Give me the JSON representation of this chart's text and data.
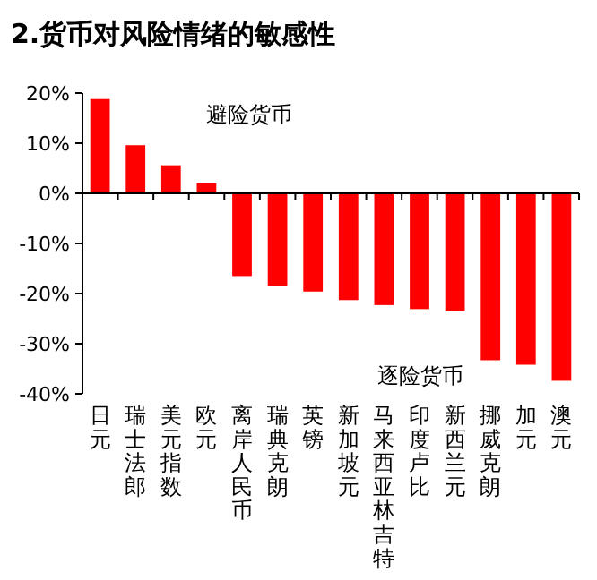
{
  "chart_data": {
    "type": "bar",
    "title": "2.货币对风险情绪的敏感性",
    "categories": [
      "日元",
      "瑞士法郎",
      "美元指数",
      "欧元",
      "离岸人民币",
      "瑞典克朗",
      "英镑",
      "新加坡元",
      "马来西亚林吉特",
      "印度卢比",
      "新西兰元",
      "挪威克朗",
      "加元",
      "澳元"
    ],
    "values": [
      18.8,
      9.6,
      5.6,
      2.0,
      -16.5,
      -18.5,
      -19.6,
      -21.3,
      -22.3,
      -23.1,
      -23.5,
      -33.3,
      -34.2,
      -37.4
    ],
    "color": "#ff0000",
    "ylim": [
      -40,
      20
    ],
    "yticks": [
      {
        "value": -40,
        "label": "-40%"
      },
      {
        "value": -30,
        "label": "-30%"
      },
      {
        "value": -20,
        "label": "-20%"
      },
      {
        "value": -10,
        "label": "-10%"
      },
      {
        "value": 0,
        "label": "0%"
      },
      {
        "value": 10,
        "label": "10%"
      },
      {
        "value": 20,
        "label": "20%"
      }
    ],
    "annotations": [
      "避险货币",
      "逐险货币"
    ]
  }
}
